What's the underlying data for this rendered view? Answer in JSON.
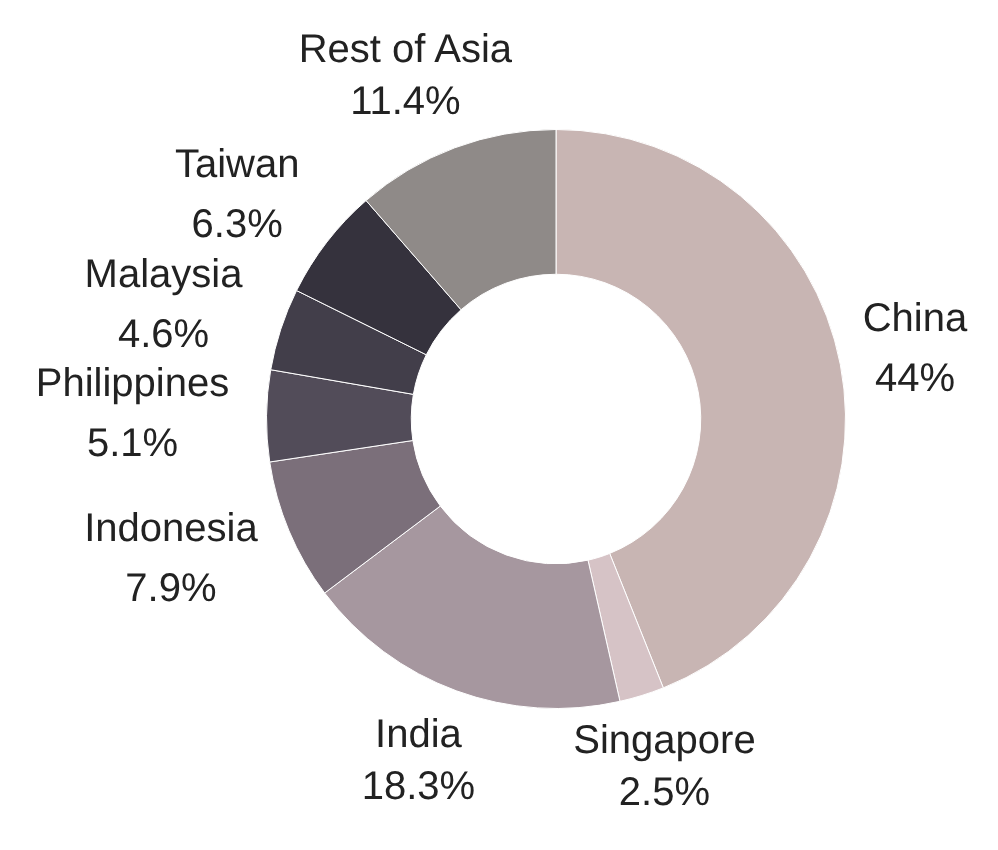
{
  "chart_data": {
    "type": "donut",
    "categories": [
      "China",
      "Singapore",
      "India",
      "Indonesia",
      "Philippines",
      "Malaysia",
      "Taiwan",
      "Rest of Asia"
    ],
    "values": [
      44,
      2.5,
      18.3,
      7.9,
      5.1,
      4.6,
      6.3,
      11.4
    ],
    "value_labels": [
      "44%",
      "2.5%",
      "18.3%",
      "7.9%",
      "5.1%",
      "4.6%",
      "6.3%",
      "11.4%"
    ],
    "colors": [
      "#c8b5b3",
      "#d6c3c6",
      "#a6979f",
      "#7b6f7a",
      "#524c59",
      "#423e4a",
      "#35323d",
      "#8f8a88"
    ],
    "legend": false
  }
}
